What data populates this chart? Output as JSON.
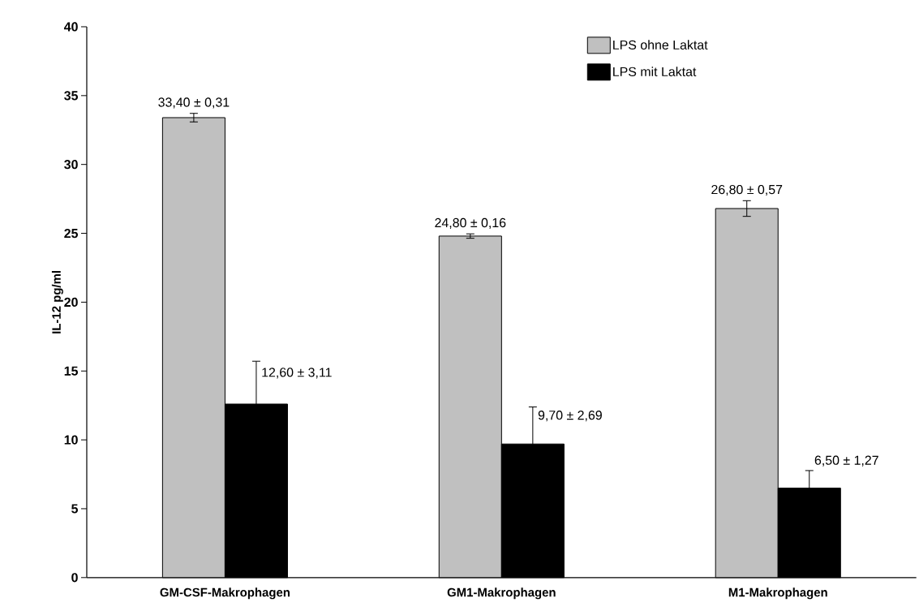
{
  "chart_data": {
    "type": "bar",
    "ylabel": "IL-12 pg/ml",
    "categories": [
      "GM-CSF-Makrophagen",
      "GM1-Makrophagen",
      "M1-Makrophagen"
    ],
    "series": [
      {
        "name": "LPS ohne Laktat",
        "color": "#c0c0c0",
        "values": [
          33.4,
          24.8,
          26.8
        ],
        "errors": [
          0.31,
          0.16,
          0.57
        ],
        "value_labels": [
          "33,40 ± 0,31",
          "24,80 ± 0,16",
          "26,80 ± 0,57"
        ]
      },
      {
        "name": "LPS mit Laktat",
        "color": "#000000",
        "values": [
          12.6,
          9.7,
          6.5
        ],
        "errors": [
          3.11,
          2.69,
          1.27
        ],
        "value_labels": [
          "12,60 ± 3,11",
          "9,70 ± 2,69",
          "6,50 ± 1,27"
        ]
      }
    ],
    "ylim": [
      0,
      40
    ],
    "yticks": [
      0,
      5,
      10,
      15,
      20,
      25,
      30,
      35,
      40
    ],
    "grid": false,
    "legend": "top right"
  }
}
